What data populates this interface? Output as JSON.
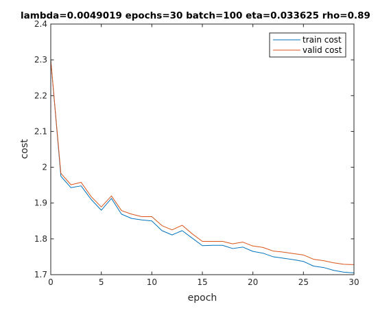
{
  "chart_data": {
    "type": "line",
    "title": "lambda=0.0049019 epochs=30 batch=100 eta=0.033625 rho=0.89",
    "xlabel": "epoch",
    "ylabel": "cost",
    "xlim": [
      0,
      30
    ],
    "ylim": [
      1.7,
      2.4
    ],
    "xticks": [
      "0",
      "5",
      "10",
      "15",
      "20",
      "25",
      "30"
    ],
    "yticks": [
      "1.7",
      "1.8",
      "1.9",
      "2",
      "2.1",
      "2.2",
      "2.3",
      "2.4"
    ],
    "x": [
      0,
      1,
      2,
      3,
      4,
      5,
      6,
      7,
      8,
      9,
      10,
      11,
      12,
      13,
      14,
      15,
      16,
      17,
      18,
      19,
      20,
      21,
      22,
      23,
      24,
      25,
      26,
      27,
      28,
      29,
      30
    ],
    "legend_position": "top-right",
    "grid": false,
    "series": [
      {
        "name": "train cost",
        "color": "#0072BD",
        "values": [
          2.3,
          1.975,
          1.943,
          1.948,
          1.91,
          1.88,
          1.913,
          1.869,
          1.857,
          1.853,
          1.85,
          1.823,
          1.811,
          1.823,
          1.802,
          1.781,
          1.782,
          1.782,
          1.773,
          1.777,
          1.765,
          1.76,
          1.75,
          1.746,
          1.742,
          1.737,
          1.724,
          1.72,
          1.712,
          1.707,
          1.705
        ]
      },
      {
        "name": "valid cost",
        "color": "#D95319",
        "values": [
          2.3,
          1.983,
          1.951,
          1.958,
          1.918,
          1.889,
          1.92,
          1.879,
          1.869,
          1.862,
          1.862,
          1.837,
          1.825,
          1.838,
          1.814,
          1.793,
          1.793,
          1.793,
          1.786,
          1.791,
          1.78,
          1.776,
          1.766,
          1.763,
          1.759,
          1.755,
          1.743,
          1.739,
          1.733,
          1.729,
          1.728
        ]
      }
    ]
  }
}
